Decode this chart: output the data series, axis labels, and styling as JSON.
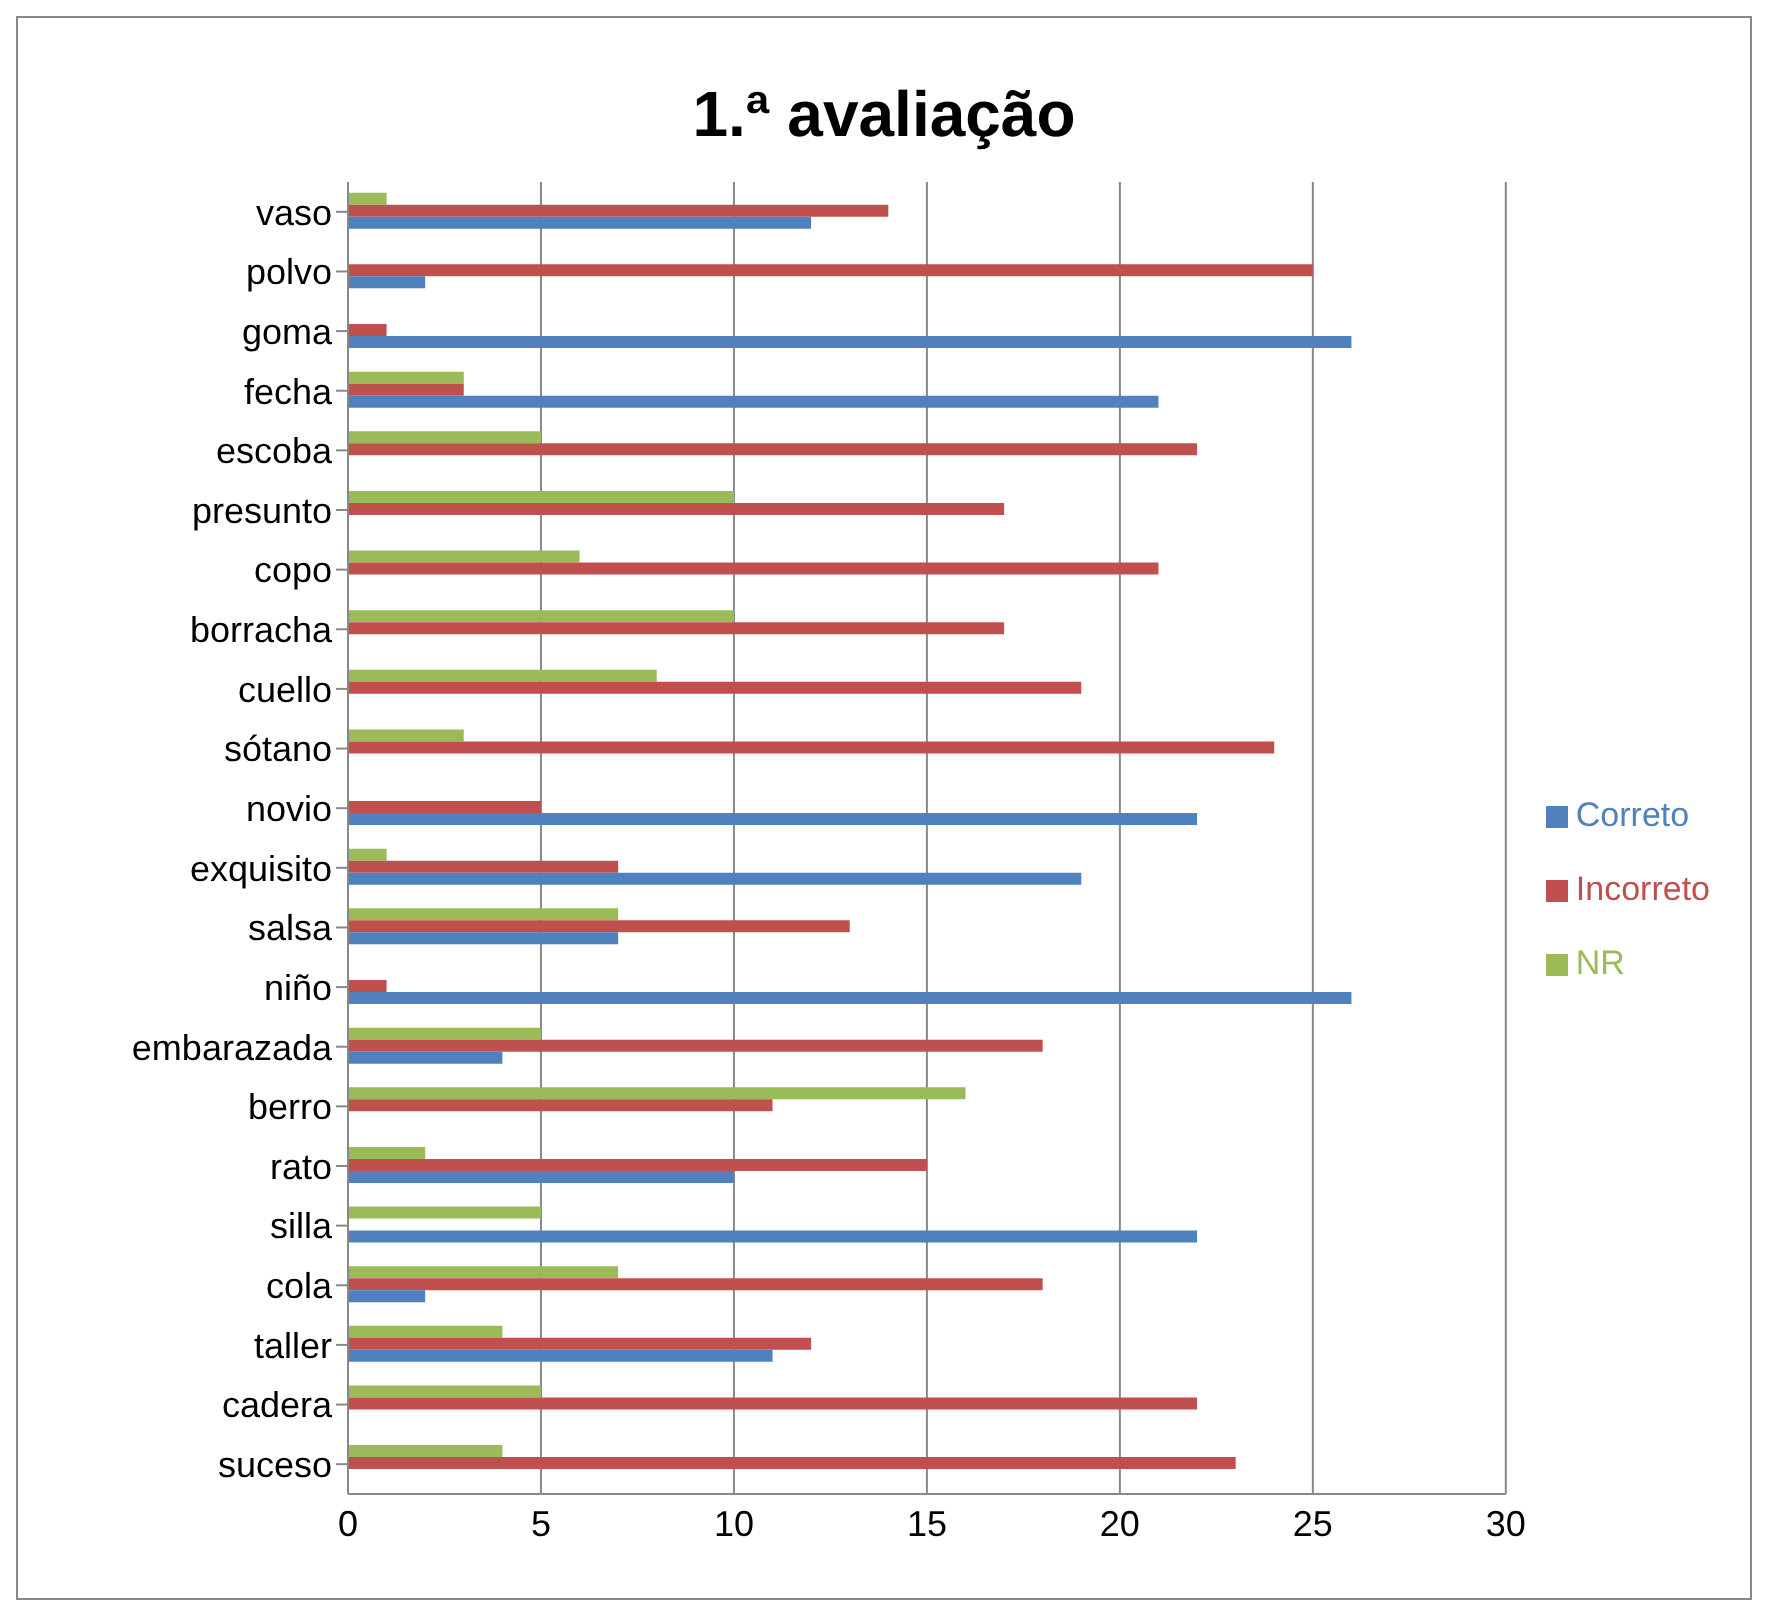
{
  "chart_data": {
    "type": "bar",
    "orientation": "horizontal",
    "title": "1.ª avaliação",
    "categories": [
      "vaso",
      "polvo",
      "goma",
      "fecha",
      "escoba",
      "presunto",
      "copo",
      "borracha",
      "cuello",
      "sótano",
      "novio",
      "exquisito",
      "salsa",
      "niño",
      "embarazada",
      "berro",
      "rato",
      "silla",
      "cola",
      "taller",
      "cadera",
      "suceso"
    ],
    "series": [
      {
        "name": "NR",
        "color": "#9bbb59",
        "values": [
          1,
          0,
          0,
          3,
          5,
          10,
          6,
          10,
          8,
          3,
          0,
          1,
          7,
          0,
          5,
          16,
          2,
          5,
          7,
          4,
          5,
          4
        ]
      },
      {
        "name": "Incorreto",
        "color": "#c0504d",
        "values": [
          14,
          25,
          1,
          3,
          22,
          17,
          21,
          17,
          19,
          24,
          5,
          7,
          13,
          1,
          18,
          11,
          15,
          0,
          18,
          12,
          22,
          23
        ]
      },
      {
        "name": "Correto",
        "color": "#4f81bd",
        "values": [
          12,
          2,
          26,
          21,
          0,
          0,
          0,
          0,
          0,
          0,
          22,
          19,
          7,
          26,
          4,
          0,
          10,
          22,
          2,
          11,
          0,
          0
        ]
      }
    ],
    "xlim": [
      0,
      30
    ],
    "xticks": [
      0,
      5,
      10,
      15,
      20,
      25,
      30
    ],
    "grid": "x",
    "legend": "right"
  }
}
